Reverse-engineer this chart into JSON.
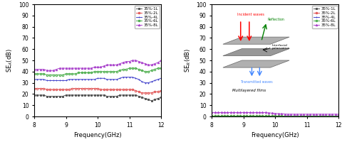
{
  "freq": [
    8.0,
    8.1,
    8.2,
    8.3,
    8.4,
    8.5,
    8.6,
    8.7,
    8.8,
    8.9,
    9.0,
    9.1,
    9.2,
    9.3,
    9.4,
    9.5,
    9.6,
    9.7,
    9.8,
    9.9,
    10.0,
    10.1,
    10.2,
    10.3,
    10.4,
    10.5,
    10.6,
    10.7,
    10.8,
    10.9,
    11.0,
    11.1,
    11.2,
    11.3,
    11.4,
    11.5,
    11.6,
    11.7,
    11.8,
    11.9,
    12.0
  ],
  "se_a_1L": [
    19,
    19,
    19,
    19,
    18,
    18,
    18,
    18,
    18,
    18,
    19,
    19,
    19,
    19,
    19,
    19,
    19,
    19,
    19,
    19,
    19,
    19,
    19,
    18,
    18,
    18,
    18,
    19,
    19,
    19,
    19,
    19,
    19,
    18,
    17,
    16,
    15,
    14,
    15,
    16,
    17
  ],
  "se_a_2L": [
    25,
    25,
    25,
    25,
    24,
    24,
    24,
    24,
    24,
    24,
    24,
    24,
    25,
    25,
    25,
    25,
    25,
    25,
    25,
    25,
    25,
    24,
    24,
    24,
    24,
    24,
    24,
    24,
    24,
    24,
    24,
    24,
    23,
    22,
    21,
    21,
    21,
    21,
    22,
    22,
    23
  ],
  "se_a_4L": [
    33,
    33,
    33,
    33,
    32,
    32,
    32,
    32,
    32,
    32,
    32,
    33,
    33,
    33,
    33,
    33,
    33,
    33,
    33,
    33,
    34,
    34,
    34,
    33,
    33,
    33,
    33,
    34,
    35,
    35,
    35,
    35,
    34,
    33,
    31,
    30,
    30,
    31,
    32,
    33,
    34
  ],
  "se_a_6L": [
    38,
    38,
    38,
    38,
    37,
    37,
    37,
    37,
    37,
    37,
    38,
    38,
    38,
    38,
    39,
    39,
    39,
    39,
    39,
    40,
    40,
    40,
    40,
    40,
    40,
    40,
    40,
    41,
    42,
    42,
    43,
    43,
    43,
    42,
    41,
    40,
    40,
    41,
    42,
    43,
    43
  ],
  "se_a_8L": [
    42,
    42,
    42,
    42,
    41,
    41,
    41,
    42,
    43,
    43,
    43,
    43,
    43,
    43,
    43,
    43,
    43,
    43,
    43,
    44,
    44,
    44,
    45,
    46,
    46,
    46,
    46,
    47,
    48,
    49,
    49,
    50,
    50,
    49,
    48,
    47,
    46,
    46,
    47,
    48,
    50
  ],
  "se_r_1L": [
    0.3,
    0.3,
    0.3,
    0.3,
    0.3,
    0.3,
    0.3,
    0.3,
    0.3,
    0.3,
    0.3,
    0.3,
    0.3,
    0.3,
    0.3,
    0.3,
    0.3,
    0.3,
    0.3,
    0.3,
    0.3,
    0.3,
    0.3,
    0.3,
    0.3,
    0.3,
    0.3,
    0.3,
    0.3,
    0.3,
    0.3,
    0.3,
    0.3,
    0.3,
    0.3,
    0.3,
    0.3,
    0.3,
    0.3,
    0.3,
    0.3
  ],
  "se_r_2L": [
    0.5,
    0.5,
    0.5,
    0.5,
    0.5,
    0.5,
    0.5,
    0.5,
    0.5,
    0.5,
    0.5,
    0.5,
    0.5,
    0.5,
    0.5,
    0.5,
    0.5,
    0.5,
    0.5,
    0.5,
    0.5,
    0.5,
    0.5,
    0.5,
    0.5,
    0.5,
    0.5,
    0.5,
    0.5,
    0.5,
    0.5,
    0.5,
    0.5,
    0.5,
    0.5,
    0.5,
    0.5,
    0.5,
    0.5,
    0.5,
    0.5
  ],
  "se_r_4L": [
    0.8,
    0.8,
    0.8,
    0.8,
    0.8,
    0.8,
    0.8,
    0.8,
    0.8,
    0.8,
    0.8,
    0.8,
    0.8,
    0.8,
    0.8,
    0.8,
    0.8,
    0.8,
    0.8,
    0.8,
    0.8,
    0.8,
    0.8,
    0.8,
    0.8,
    0.8,
    0.8,
    0.8,
    0.8,
    0.8,
    0.8,
    0.8,
    0.8,
    0.8,
    0.8,
    0.8,
    0.8,
    0.8,
    0.8,
    0.8,
    0.8
  ],
  "se_r_6L": [
    0.4,
    0.4,
    0.4,
    0.4,
    0.4,
    0.4,
    0.4,
    0.4,
    0.4,
    0.4,
    0.4,
    0.4,
    0.4,
    0.4,
    0.4,
    0.4,
    0.4,
    0.4,
    0.4,
    0.4,
    0.4,
    0.4,
    0.4,
    0.4,
    0.4,
    0.4,
    0.4,
    0.4,
    0.4,
    0.4,
    0.4,
    0.4,
    0.4,
    0.4,
    0.4,
    0.4,
    0.4,
    0.4,
    0.4,
    0.4,
    0.4
  ],
  "se_r_8L": [
    3.5,
    3.5,
    3.5,
    3.5,
    3.5,
    3.5,
    3.5,
    3.5,
    3.5,
    3.5,
    3.5,
    3.5,
    3.5,
    3.5,
    3.5,
    3.5,
    3.5,
    3.5,
    3.2,
    3.0,
    2.8,
    2.5,
    2.3,
    2.2,
    2.0,
    2.0,
    2.0,
    2.0,
    2.0,
    2.0,
    2.0,
    2.0,
    2.0,
    2.0,
    2.0,
    2.0,
    2.0,
    2.0,
    2.0,
    2.0,
    2.0
  ],
  "colors": {
    "1L": "#555555",
    "2L": "#e05050",
    "4L": "#4444cc",
    "6L": "#44aa44",
    "8L": "#aa44cc"
  },
  "markers": {
    "1L": "s",
    "2L": "o",
    "4L": "+",
    "6L": "o",
    "8L": "^"
  },
  "legend_labels": [
    "35%-1L",
    "35%-2L",
    "35%-4L",
    "35%-6L",
    "35%-8L"
  ],
  "ylabel_left": "SE$_A$(dB)",
  "ylabel_right": "SE$_R$(dB)",
  "xlabel": "Frequency(GHz)",
  "xlim": [
    8,
    12
  ],
  "ylim_left": [
    0,
    100
  ],
  "ylim_right": [
    0,
    100
  ],
  "yticks": [
    0,
    10,
    20,
    30,
    40,
    50,
    60,
    70,
    80,
    90,
    100
  ],
  "xticks": [
    8,
    9,
    10,
    11,
    12
  ],
  "inset_bg_color": "#f5dfc0"
}
